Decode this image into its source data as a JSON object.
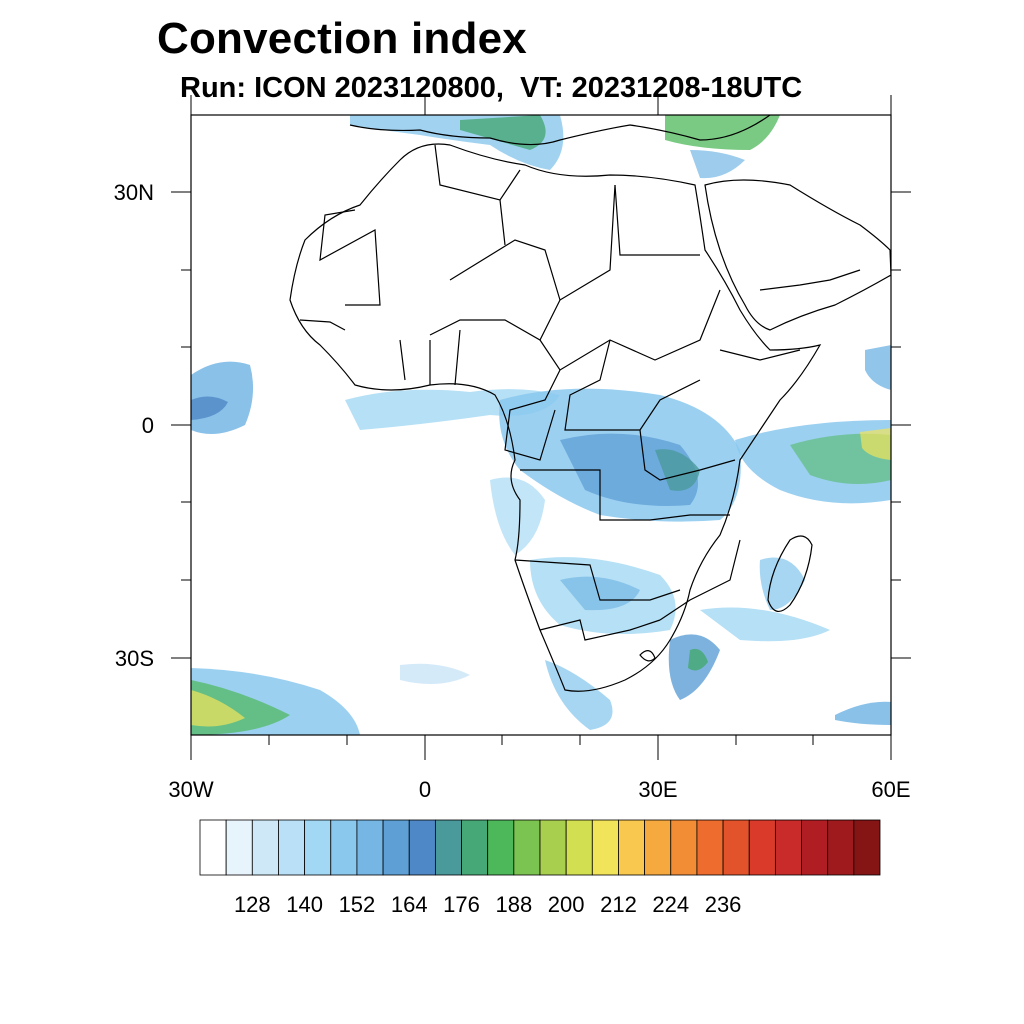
{
  "header": {
    "title": "Convection index",
    "subtitle": "Run: ICON 2023120800,  VT: 20231208-18UTC"
  },
  "axes": {
    "lat_labels": [
      "30N",
      "0",
      "30S"
    ],
    "lon_labels": [
      "30W",
      "0",
      "30E",
      "60E"
    ]
  },
  "colorbar": {
    "colors": [
      "#ffffff",
      "#e8f4fc",
      "#cfe8f8",
      "#b9e0f7",
      "#a2d8f3",
      "#8ac8ee",
      "#75b6e4",
      "#5e9fd6",
      "#4f88c6",
      "#4a9a9c",
      "#47a877",
      "#4db85a",
      "#7cc451",
      "#a9cf4f",
      "#d2df50",
      "#f2e45a",
      "#f8c94e",
      "#f6a93f",
      "#f28d36",
      "#ed6c2e",
      "#e2532b",
      "#d93a2a",
      "#c92a2a",
      "#b01e23",
      "#9e1a1d",
      "#851515"
    ],
    "tick_labels": [
      "128",
      "140",
      "152",
      "164",
      "176",
      "188",
      "200",
      "212",
      "224",
      "236"
    ]
  }
}
